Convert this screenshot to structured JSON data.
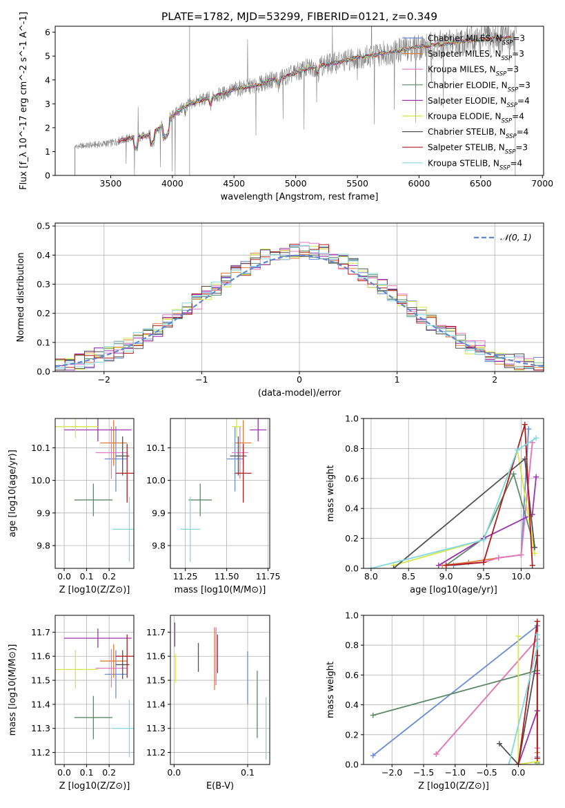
{
  "chart_data": [
    {
      "id": "spectrum",
      "type": "line",
      "title": "PLATE=1782, MJD=53299, FIBERID=0121, z=0.349",
      "xlabel": "wavelength [Angstrom, rest frame]",
      "ylabel": "Flux [f_λ 10^-17 erg cm^-2 s^-1 A^-1]",
      "xlim": [
        3050,
        7010
      ],
      "ylim": [
        0,
        6.25
      ],
      "xticks": [
        3500,
        4000,
        4500,
        5000,
        5500,
        6000,
        6500,
        7000
      ],
      "yticks": [
        0,
        1,
        2,
        3,
        4,
        5,
        6
      ],
      "legend_position": "upper right",
      "observed_color": "#808080",
      "legend": [
        {
          "label": "Chabrier MILES, N_SSP=3",
          "color": "#6b8cd6"
        },
        {
          "label": "Salpeter MILES, N_SSP=3",
          "color": "#e07b39"
        },
        {
          "label": "Kroupa MILES, N_SSP=3",
          "color": "#e377c2"
        },
        {
          "label": "Chabrier ELODIE, N_SSP=3",
          "color": "#5a8a65"
        },
        {
          "label": "Salpeter ELODIE, N_SSP=4",
          "color": "#9b30b0"
        },
        {
          "label": "Kroupa ELODIE, N_SSP=4",
          "color": "#d6e845"
        },
        {
          "label": "Chabrier STELIB, N_SSP=4",
          "color": "#505050"
        },
        {
          "label": "Salpeter STELIB, N_SSP=3",
          "color": "#b01a1a"
        },
        {
          "label": "Kroupa STELIB, N_SSP=4",
          "color": "#80d8e0"
        }
      ],
      "model_continuum": {
        "x": [
          3200,
          3300,
          3400,
          3500,
          3600,
          3700,
          3800,
          3900,
          4000,
          4100,
          4200,
          4300,
          4400,
          4500,
          4600,
          4700,
          4800,
          4900,
          5000,
          5100,
          5200,
          5300,
          5400,
          5500,
          5600,
          5700,
          5800,
          5900,
          6000,
          6100,
          6200,
          6300,
          6400,
          6500,
          6600,
          6700,
          6800
        ],
        "y": [
          1.2,
          1.25,
          1.3,
          1.35,
          1.5,
          1.6,
          1.65,
          2.0,
          2.5,
          2.9,
          3.1,
          3.25,
          3.4,
          3.6,
          3.7,
          3.8,
          4.0,
          4.1,
          4.3,
          4.5,
          4.6,
          4.7,
          4.8,
          4.95,
          5.0,
          5.1,
          5.2,
          5.3,
          5.4,
          5.45,
          5.5,
          5.6,
          5.65,
          5.7,
          5.75,
          5.75,
          5.8
        ]
      }
    },
    {
      "id": "residuals",
      "type": "line",
      "xlabel": "(data-model)/error",
      "ylabel": "Normed distribution",
      "xlim": [
        -2.5,
        2.5
      ],
      "ylim": [
        0,
        0.51
      ],
      "xticks": [
        -2,
        -1,
        0,
        1,
        2
      ],
      "yticks": [
        0.0,
        0.1,
        0.2,
        0.3,
        0.4,
        0.5
      ],
      "grid": true,
      "legend_position": "upper right",
      "reference_curve": {
        "label": "𝒩(0, 1)",
        "color": "#5b88d6",
        "style": "dashed"
      }
    },
    {
      "id": "age_vs_Z",
      "type": "scatter",
      "xlabel": "Z [log10(Z/Z⊙)]",
      "ylabel": "age  [log10(age/yr)]",
      "xlim": [
        -0.04,
        0.31
      ],
      "ylim": [
        9.73,
        10.19
      ],
      "xticks": [
        0.0,
        0.1,
        0.2
      ],
      "yticks": [
        9.8,
        9.9,
        10.0,
        10.1
      ],
      "grid": true,
      "points": [
        {
          "x": 0.23,
          "y": 10.066,
          "xerr": 0.05,
          "yerr": 0.1,
          "color": "#6b8cd6"
        },
        {
          "x": 0.22,
          "y": 10.115,
          "xerr": 0.06,
          "yerr": 0.07,
          "color": "#e07b39"
        },
        {
          "x": 0.21,
          "y": 10.085,
          "xerr": 0.07,
          "yerr": 0.08,
          "color": "#e377c2"
        },
        {
          "x": 0.13,
          "y": 9.94,
          "xerr": 0.085,
          "yerr": 0.05,
          "color": "#5a8a65"
        },
        {
          "x": 0.15,
          "y": 10.155,
          "xerr": 0.15,
          "yerr": 0.035,
          "color": "#9b30b0"
        },
        {
          "x": 0.05,
          "y": 10.165,
          "xerr": 0.1,
          "yerr": 0.035,
          "color": "#d6e845"
        },
        {
          "x": 0.26,
          "y": 10.075,
          "xerr": 0.03,
          "yerr": 0.06,
          "color": "#505050"
        },
        {
          "x": 0.28,
          "y": 10.022,
          "xerr": 0.05,
          "yerr": 0.09,
          "color": "#b01a1a"
        },
        {
          "x": 0.29,
          "y": 9.85,
          "xerr": 0.075,
          "yerr": 0.1,
          "color": "#80d8e0"
        }
      ]
    },
    {
      "id": "age_vs_mass",
      "type": "scatter",
      "xlabel": "mass [log10(M/M⊙)]",
      "ylabel": "",
      "xlim": [
        11.16,
        11.76
      ],
      "ylim": [
        9.73,
        10.19
      ],
      "xticks": [
        11.25,
        11.5,
        11.75
      ],
      "yticks": [
        9.8,
        9.9,
        10.0,
        10.1
      ],
      "grid": true,
      "points": [
        {
          "x": 11.55,
          "y": 10.066,
          "xerr": 0.05,
          "yerr": 0.1,
          "color": "#6b8cd6"
        },
        {
          "x": 11.6,
          "y": 10.115,
          "xerr": 0.05,
          "yerr": 0.07,
          "color": "#e07b39"
        },
        {
          "x": 11.58,
          "y": 10.085,
          "xerr": 0.05,
          "yerr": 0.08,
          "color": "#e377c2"
        },
        {
          "x": 11.34,
          "y": 9.94,
          "xerr": 0.07,
          "yerr": 0.05,
          "color": "#5a8a65"
        },
        {
          "x": 11.69,
          "y": 10.155,
          "xerr": 0.05,
          "yerr": 0.035,
          "color": "#9b30b0"
        },
        {
          "x": 11.56,
          "y": 10.165,
          "xerr": 0.03,
          "yerr": 0.035,
          "color": "#d6e845"
        },
        {
          "x": 11.57,
          "y": 10.075,
          "xerr": 0.05,
          "yerr": 0.06,
          "color": "#505050"
        },
        {
          "x": 11.6,
          "y": 10.022,
          "xerr": 0.05,
          "yerr": 0.09,
          "color": "#b01a1a"
        },
        {
          "x": 11.28,
          "y": 9.85,
          "xerr": 0.06,
          "yerr": 0.1,
          "color": "#80d8e0"
        }
      ]
    },
    {
      "id": "weight_vs_age",
      "type": "line",
      "xlabel": "age  [log10(age/yr)]",
      "ylabel": "mass weight",
      "xlim": [
        7.9,
        10.3
      ],
      "ylim": [
        0,
        1.0
      ],
      "xticks": [
        8.0,
        8.5,
        9.0,
        9.5,
        10.0
      ],
      "yticks": [
        0.0,
        0.2,
        0.4,
        0.6,
        0.8,
        1.0
      ],
      "grid": true,
      "series": [
        {
          "color": "#6b8cd6",
          "x": [
            9.1,
            9.5,
            9.7,
            10.0,
            10.1
          ],
          "y": [
            0.02,
            0.04,
            0.07,
            0.09,
            0.93
          ]
        },
        {
          "color": "#e07b39",
          "x": [
            8.95,
            9.3,
            9.7,
            10.0,
            10.15
          ],
          "y": [
            0.02,
            0.04,
            0.07,
            0.09,
            0.84
          ]
        },
        {
          "color": "#e377c2",
          "x": [
            9.0,
            9.5,
            9.7,
            10.0,
            10.15
          ],
          "y": [
            0.02,
            0.04,
            0.07,
            0.09,
            0.84
          ]
        },
        {
          "color": "#5a8a65",
          "x": [
            9.0,
            9.5,
            9.9,
            10.18
          ],
          "y": [
            0.02,
            0.2,
            0.63,
            0.14
          ]
        },
        {
          "color": "#9b30b0",
          "x": [
            8.9,
            9.5,
            10.15,
            10.2
          ],
          "y": [
            0.02,
            0.2,
            0.36,
            0.61
          ]
        },
        {
          "color": "#d6e845",
          "x": [
            8.3,
            9.5,
            9.95,
            10.18
          ],
          "y": [
            0.02,
            0.19,
            0.79,
            0.1
          ]
        },
        {
          "color": "#505050",
          "x": [
            8.3,
            10.05,
            10.18
          ],
          "y": [
            0.0,
            0.73,
            0.14
          ]
        },
        {
          "color": "#b01a1a",
          "x": [
            9.0,
            9.5,
            10.05,
            10.15
          ],
          "y": [
            0.02,
            0.04,
            0.96,
            0.02
          ]
        },
        {
          "color": "#80d8e0",
          "x": [
            8.0,
            9.5,
            9.95,
            10.2
          ],
          "y": [
            0.0,
            0.19,
            0.79,
            0.87
          ]
        }
      ]
    },
    {
      "id": "mass_vs_Z",
      "type": "scatter",
      "xlabel": "Z [log10(Z/Z⊙)]",
      "ylabel": "mass [log10(M/M⊙)]",
      "xlim": [
        -0.04,
        0.31
      ],
      "ylim": [
        11.15,
        11.77
      ],
      "xticks": [
        0.0,
        0.1,
        0.2
      ],
      "yticks": [
        11.2,
        11.3,
        11.4,
        11.5,
        11.6,
        11.7
      ],
      "grid": true,
      "points": [
        {
          "x": 0.23,
          "y": 11.525,
          "xerr": 0.05,
          "yerr": 0.1,
          "color": "#6b8cd6"
        },
        {
          "x": 0.22,
          "y": 11.58,
          "xerr": 0.06,
          "yerr": 0.07,
          "color": "#e07b39"
        },
        {
          "x": 0.21,
          "y": 11.55,
          "xerr": 0.07,
          "yerr": 0.08,
          "color": "#e377c2"
        },
        {
          "x": 0.13,
          "y": 11.345,
          "xerr": 0.085,
          "yerr": 0.09,
          "color": "#5a8a65"
        },
        {
          "x": 0.15,
          "y": 11.675,
          "xerr": 0.15,
          "yerr": 0.04,
          "color": "#9b30b0"
        },
        {
          "x": 0.05,
          "y": 11.545,
          "xerr": 0.1,
          "yerr": 0.08,
          "color": "#d6e845"
        },
        {
          "x": 0.26,
          "y": 11.565,
          "xerr": 0.03,
          "yerr": 0.06,
          "color": "#505050"
        },
        {
          "x": 0.28,
          "y": 11.6,
          "xerr": 0.05,
          "yerr": 0.09,
          "color": "#b01a1a"
        },
        {
          "x": 0.29,
          "y": 11.3,
          "xerr": 0.075,
          "yerr": 0.12,
          "color": "#80d8e0"
        }
      ]
    },
    {
      "id": "mass_vs_EBV",
      "type": "scatter",
      "xlabel": "E(B-V)",
      "ylabel": "",
      "xlim": [
        -0.005,
        0.13
      ],
      "ylim": [
        11.15,
        11.77
      ],
      "xticks": [
        0.0,
        0.1
      ],
      "yticks": [
        11.2,
        11.3,
        11.4,
        11.5,
        11.6,
        11.7
      ],
      "grid": true,
      "points": [
        {
          "x": 0.1,
          "y": 11.51,
          "xerr": 0,
          "yerr": 0.11,
          "color": "#6b8cd6"
        },
        {
          "x": 0.055,
          "y": 11.59,
          "xerr": 0,
          "yerr": 0.13,
          "color": "#e07b39"
        },
        {
          "x": 0.057,
          "y": 11.6,
          "xerr": 0,
          "yerr": 0.12,
          "color": "#e377c2"
        },
        {
          "x": 0.113,
          "y": 11.4,
          "xerr": 0,
          "yerr": 0.14,
          "color": "#5a8a65"
        },
        {
          "x": 0.001,
          "y": 11.69,
          "xerr": 0,
          "yerr": 0.05,
          "color": "#9b30b0"
        },
        {
          "x": 0.002,
          "y": 11.55,
          "xerr": 0,
          "yerr": 0.06,
          "color": "#d6e845"
        },
        {
          "x": 0.033,
          "y": 11.595,
          "xerr": 0,
          "yerr": 0.06,
          "color": "#505050"
        },
        {
          "x": 0.059,
          "y": 11.61,
          "xerr": 0,
          "yerr": 0.08,
          "color": "#b01a1a"
        },
        {
          "x": 0.125,
          "y": 11.3,
          "xerr": 0,
          "yerr": 0.13,
          "color": "#80d8e0"
        }
      ]
    },
    {
      "id": "weight_vs_Z",
      "type": "line",
      "xlabel": "Z [log10(Z/Z⊙)]",
      "ylabel": "mass weight",
      "xlim": [
        -2.45,
        0.4
      ],
      "ylim": [
        0,
        1.0
      ],
      "xticks": [
        -2.0,
        -1.5,
        -1.0,
        -0.5,
        0.0
      ],
      "yticks": [
        0.0,
        0.2,
        0.4,
        0.6,
        0.8,
        1.0
      ],
      "grid": true,
      "series": [
        {
          "color": "#6b8cd6",
          "x": [
            -2.3,
            0.3,
            0.3
          ],
          "y": [
            0.06,
            0.93,
            0.05
          ]
        },
        {
          "color": "#e07b39",
          "x": [
            -1.3,
            0.3,
            0.3
          ],
          "y": [
            0.07,
            0.84,
            0.08
          ]
        },
        {
          "color": "#e377c2",
          "x": [
            -1.3,
            0.3,
            0.3
          ],
          "y": [
            0.07,
            0.84,
            0.11
          ]
        },
        {
          "color": "#5a8a65",
          "x": [
            -2.3,
            0.3,
            0.3
          ],
          "y": [
            0.33,
            0.63,
            0.01
          ]
        },
        {
          "color": "#9b30b0",
          "x": [
            0.0,
            0.3,
            0.3
          ],
          "y": [
            0.0,
            0.36,
            0.61
          ]
        },
        {
          "color": "#d6e845",
          "x": [
            0.0,
            0.0,
            0.3
          ],
          "y": [
            0.86,
            0.0,
            0.02
          ]
        },
        {
          "color": "#505050",
          "x": [
            -0.3,
            0.0,
            0.3
          ],
          "y": [
            0.14,
            0.0,
            0.73
          ]
        },
        {
          "color": "#b01a1a",
          "x": [
            0.0,
            0.3,
            0.3
          ],
          "y": [
            0.0,
            0.96,
            0.04
          ]
        },
        {
          "color": "#80d8e0",
          "x": [
            -0.15,
            0.3,
            0.3
          ],
          "y": [
            0.0,
            0.79,
            0.87
          ]
        }
      ]
    }
  ]
}
